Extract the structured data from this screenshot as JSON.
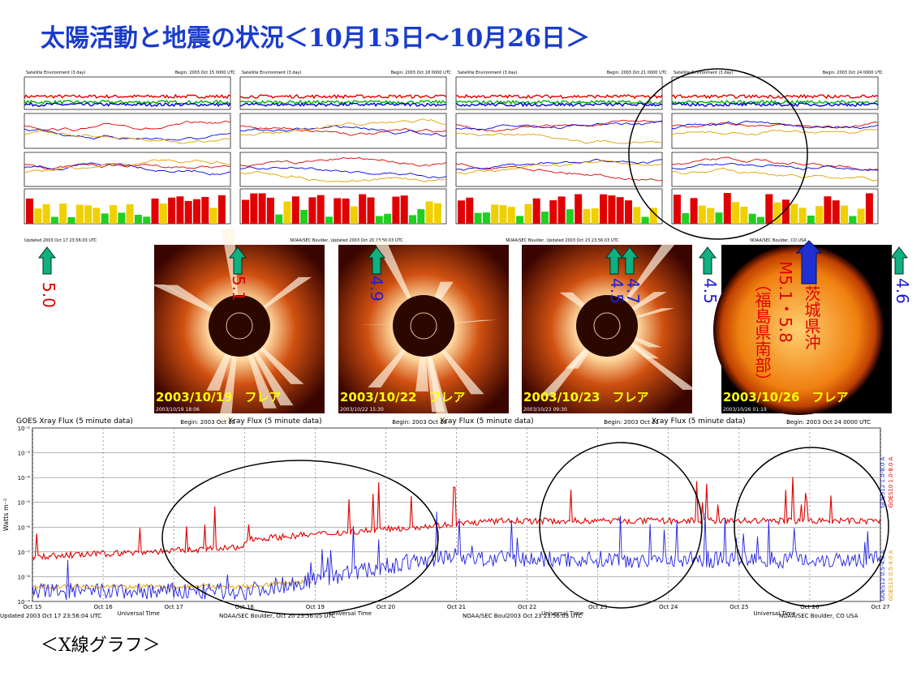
{
  "title": "太陽活動と地震の状況＜10月15日～10月26日＞",
  "top_panels": [
    {
      "header": "Satellite Environment (3 day)",
      "begin": "Begin: 2003 Oct 15 0000 UTC",
      "footer": "Updated 2003 Oct 17 23:56:03 UTC"
    },
    {
      "header": "Satellite Environment (3 day)",
      "begin": "Begin: 2003 Oct 18 0000 UTC",
      "footer": "NOAA/SEC Boulder, Updated 2003 Oct 20 23:56:03 UTC"
    },
    {
      "header": "Satellite Environment (3 day)",
      "begin": "Begin: 2003 Oct 21 0000 UTC",
      "footer": "NOAA/SEC Boulder, Updated 2003 Oct 23 23:56:03 UTC"
    },
    {
      "header": "Satellite Environment (3 day)",
      "begin": "Begin: 2003 Oct 24 0000 UTC",
      "footer": "NOAA/SEC Boulder, CO USA"
    }
  ],
  "earthquakes": [
    {
      "text": "5.0",
      "color": "#e00000"
    },
    {
      "text": "5.1",
      "color": "#e00000"
    },
    {
      "text": "4.9",
      "color": "#2020d0"
    },
    {
      "text": "4.5",
      "color": "#2020d0"
    },
    {
      "text": "4.7",
      "color": "#2020d0"
    },
    {
      "text": "4.5",
      "color": "#2020d0"
    },
    {
      "text": "（福島県南部）",
      "color": "#e00000"
    },
    {
      "text": "M5.1・5.8",
      "color": "#e00000"
    },
    {
      "text": "茨城県沖",
      "color": "#e00000"
    },
    {
      "text": "4.6",
      "color": "#2020d0"
    }
  ],
  "images": [
    {
      "caption": "2003/10/19　フレア",
      "stamp": "2003/10/19 18:06"
    },
    {
      "caption": "2003/10/22　フレア",
      "stamp": "2003/10/22 15:30"
    },
    {
      "caption": "2003/10/23　フレア",
      "stamp": "2003/10/23 09:30"
    },
    {
      "caption": "2003/10/26　フレア",
      "stamp": "2003/10/26 01:19"
    }
  ],
  "xray": {
    "headers": [
      "GOES Xray Flux (5 minute data)",
      "Xray Flux (5 minute data)",
      "Xray Flux (5 minute data)",
      "Xray Flux (5 minute data)"
    ],
    "begins": [
      "Begin: 2003 Oct 15",
      "Begin: 2003 Oct 18",
      "Begin: 2003 Oct 21",
      "Begin: 2003 Oct 24 0000 UTC"
    ],
    "y_labels": [
      "10⁻²",
      "10⁻³",
      "10⁻⁴",
      "10⁻⁵",
      "10⁻⁶",
      "10⁻⁷",
      "10⁻⁸",
      "10⁻⁹"
    ],
    "y_axis_label": "Watts m⁻²",
    "x_labels": [
      "Oct 15",
      "Oct 16",
      "Oct 17",
      "Oct 18",
      "Oct 19",
      "Oct 20",
      "Oct 21",
      "Oct 22",
      "Oct 23",
      "Oct 24",
      "Oct 25",
      "Oct 26",
      "Oct 27"
    ],
    "x_axis_label": "Universal Time",
    "legend": [
      "GOES10 1.0-8.0 A",
      "GOES12 1.0-8.0 A",
      "GOES10 0.5-4.0 A",
      "GOES12 0.5-4.0 A"
    ],
    "footers": [
      "Updated 2003 Oct 17 23:56:04 UTC",
      "NOAA/SEC Boulder, Oct 20 23:56:05 UTC",
      "NOAA/SEC Boul2003 Oct 23 23:56:03 UTC",
      "NOAA/SEC Boulder, CO USA"
    ]
  },
  "caption": "＜X線グラフ＞"
}
